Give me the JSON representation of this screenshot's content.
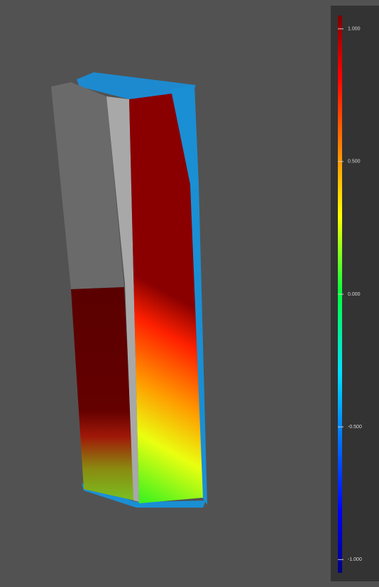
{
  "colorbar": {
    "range": [
      -1.05,
      1.05
    ],
    "ticks": [
      {
        "value": 1,
        "label": "1.000"
      },
      {
        "value": 0.5,
        "label": "0.500"
      },
      {
        "value": 0,
        "label": "0.000"
      },
      {
        "value": -0.5,
        "label": "-0.500"
      },
      {
        "value": -1,
        "label": "-1.000"
      }
    ]
  }
}
